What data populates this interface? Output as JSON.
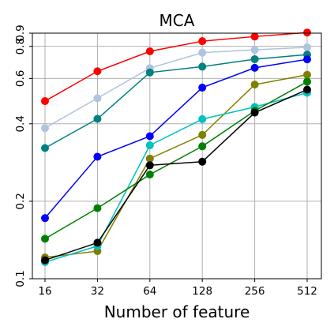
{
  "chart_data": {
    "type": "line",
    "title": "MCA",
    "xlabel": "Number of feature",
    "ylabel": "",
    "x_scale": "log2",
    "y_scale": "log",
    "x": [
      16,
      32,
      64,
      128,
      256,
      512
    ],
    "x_tick_labels": [
      "16",
      "32",
      "64",
      "128",
      "256",
      "512"
    ],
    "ylim": [
      0.1,
      0.9
    ],
    "y_ticks": [
      0.1,
      0.2,
      0.4,
      0.6,
      0.8,
      0.9
    ],
    "y_tick_labels": [
      "0.1",
      "0.2",
      "0.4",
      "0.6",
      "0.8",
      "0.9"
    ],
    "grid": true,
    "legend": "none",
    "series": [
      {
        "color": "#ff0000",
        "values": [
          0.49,
          0.64,
          0.765,
          0.838,
          0.873,
          0.905
        ]
      },
      {
        "color": "#b0c4de",
        "values": [
          0.385,
          0.503,
          0.658,
          0.756,
          0.775,
          0.793
        ]
      },
      {
        "color": "#008080",
        "values": [
          0.322,
          0.418,
          0.633,
          0.667,
          0.713,
          0.743
        ]
      },
      {
        "color": "#0000ff",
        "values": [
          0.172,
          0.298,
          0.358,
          0.553,
          0.66,
          0.712
        ]
      },
      {
        "color": "#808000",
        "values": [
          0.121,
          0.128,
          0.293,
          0.362,
          0.568,
          0.62
        ]
      },
      {
        "color": "#00c0c0",
        "values": [
          0.116,
          0.134,
          0.33,
          0.417,
          0.465,
          0.528
        ]
      },
      {
        "color": "#008000",
        "values": [
          0.143,
          0.188,
          0.254,
          0.327,
          0.449,
          0.583
        ]
      },
      {
        "color": "#000000",
        "values": [
          0.118,
          0.138,
          0.276,
          0.285,
          0.442,
          0.543
        ]
      }
    ]
  }
}
